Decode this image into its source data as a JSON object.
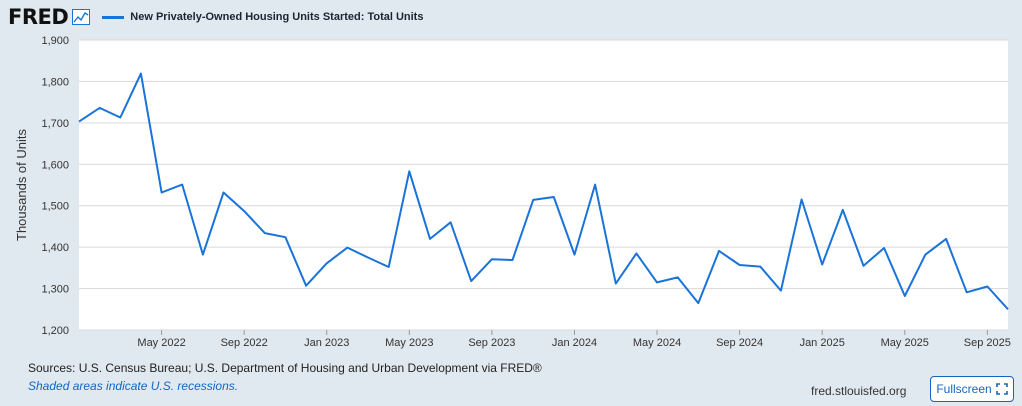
{
  "header": {
    "logo": "FRED",
    "legend_label": "New Privately-Owned Housing Units Started: Total Units",
    "icons": [
      "fred-graph-icon"
    ]
  },
  "footer": {
    "sources": "Sources: U.S. Census Bureau; U.S. Department of Housing and Urban Development via FRED®",
    "recessions_note": "Shaded areas indicate U.S. recessions.",
    "site": "fred.stlouisfed.org",
    "fullscreen_label": "Fullscreen",
    "fullscreen_icon": "fullscreen-icon"
  },
  "colors": {
    "line": "#1a73d9",
    "plot_background": "#ffffff",
    "page_background": "#e1e9f0",
    "grid": "#d9d9d9"
  },
  "chart_data": {
    "type": "line",
    "title": "New Privately-Owned Housing Units Started: Total Units",
    "ylabel": "Thousands of Units",
    "xlabel": "",
    "ylim": [
      1200,
      1900
    ],
    "yticks": [
      1200,
      1300,
      1400,
      1500,
      1600,
      1700,
      1800,
      1900
    ],
    "ytick_labels": [
      "1,200",
      "1,300",
      "1,400",
      "1,500",
      "1,600",
      "1,700",
      "1,800",
      "1,900"
    ],
    "xtick_labels": [
      "May 2022",
      "Sep 2022",
      "Jan 2023",
      "May 2023",
      "Sep 2023",
      "Jan 2024",
      "May 2024",
      "Sep 2024",
      "Jan 2025",
      "May 2025",
      "Sep 2025"
    ],
    "xtick_dates": [
      "2022-05",
      "2022-09",
      "2023-01",
      "2023-05",
      "2023-09",
      "2024-01",
      "2024-05",
      "2024-09",
      "2025-01",
      "2025-05",
      "2025-09"
    ],
    "grid": true,
    "legend": "top-left",
    "series": [
      {
        "name": "New Privately-Owned Housing Units Started: Total Units",
        "x": [
          "2022-01",
          "2022-02",
          "2022-03",
          "2022-04",
          "2022-05",
          "2022-06",
          "2022-07",
          "2022-08",
          "2022-09",
          "2022-10",
          "2022-11",
          "2022-12",
          "2023-01",
          "2023-02",
          "2023-03",
          "2023-04",
          "2023-05",
          "2023-06",
          "2023-07",
          "2023-08",
          "2023-09",
          "2023-10",
          "2023-11",
          "2023-12",
          "2024-01",
          "2024-02",
          "2024-03",
          "2024-04",
          "2024-05",
          "2024-06",
          "2024-07",
          "2024-08",
          "2024-09",
          "2024-10",
          "2024-11",
          "2024-12",
          "2025-01",
          "2025-02",
          "2025-03",
          "2025-04",
          "2025-05",
          "2025-06",
          "2025-07",
          "2025-08",
          "2025-09",
          "2025-10"
        ],
        "values": [
          1703,
          1736,
          1713,
          1819,
          1532,
          1551,
          1382,
          1532,
          1487,
          1434,
          1424,
          1307,
          1361,
          1399,
          1375,
          1352,
          1583,
          1420,
          1460,
          1318,
          1371,
          1369,
          1514,
          1521,
          1382,
          1551,
          1312,
          1385,
          1315,
          1327,
          1265,
          1391,
          1357,
          1353,
          1295,
          1515,
          1358,
          1490,
          1355,
          1398,
          1282,
          1382,
          1420,
          1291,
          1305,
          1250
        ]
      }
    ]
  }
}
